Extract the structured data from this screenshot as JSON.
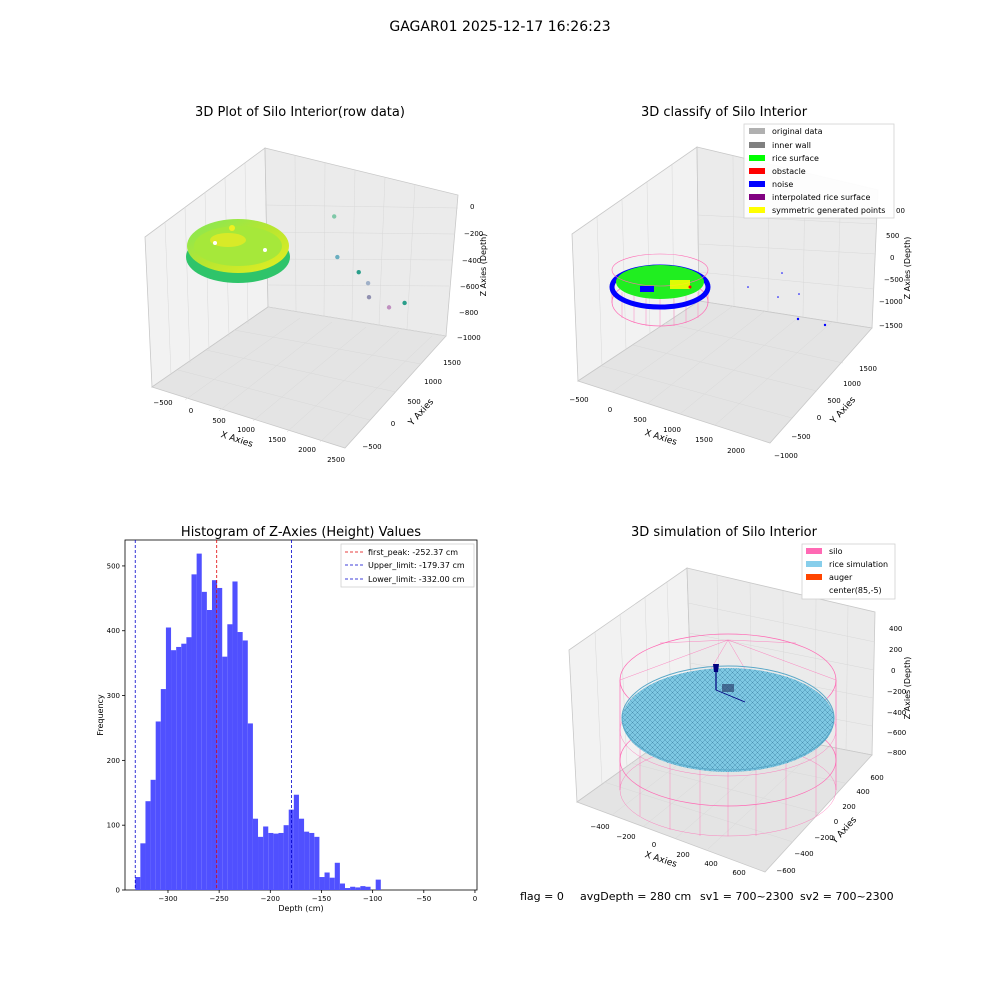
{
  "suptitle": "GAGAR01 2025-12-17 16:26:23",
  "footer": {
    "flag": "flag = 0",
    "avg_depth": "avgDepth = 280 cm",
    "sv1": "sv1 = 700~2300",
    "sv2": "sv2 = 700~2300"
  },
  "colors": {
    "hist_bar": "#5050ff",
    "peak_line": "#e00000",
    "limit_line": "#0000cc",
    "original": "#b0b0b0",
    "inner_wall": "#808080",
    "rice_surface": "#00ff00",
    "obstacle": "#ff0000",
    "noise": "#0000ff",
    "interpolated": "#800080",
    "symmetric": "#ffff00",
    "silo": "#ff69b4",
    "rice_sim": "#87ceeb",
    "auger": "#ff4500"
  },
  "chart_data": [
    {
      "type": "scatter",
      "title": "3D Plot of Silo Interior(row data)",
      "xlabel": "X Axies",
      "ylabel": "Y Axies",
      "zlabel": "Z Axies (Depth)",
      "x_ticks": [
        "−500",
        "0",
        "500",
        "1000",
        "1500",
        "2000",
        "2500"
      ],
      "y_ticks": [
        "−500",
        "0",
        "500",
        "1000",
        "1500"
      ],
      "z_ticks": [
        "0",
        "−200",
        "−400",
        "−600",
        "−800",
        "−1000"
      ],
      "outliers": [
        {
          "x": 1500,
          "y": 700,
          "z": -380
        },
        {
          "x": 1300,
          "y": 400,
          "z": -620
        },
        {
          "x": 1600,
          "y": 400,
          "z": -710
        },
        {
          "x": 1650,
          "y": 300,
          "z": -760
        },
        {
          "x": 1500,
          "y": 100,
          "z": -820
        },
        {
          "x": 1700,
          "y": 0,
          "z": -850
        },
        {
          "x": 2000,
          "y": 100,
          "z": -820
        }
      ]
    },
    {
      "type": "scatter",
      "title": "3D classify of Silo Interior",
      "xlabel": "X Axies",
      "ylabel": "Y Axies",
      "zlabel": "Z Axies (Depth)",
      "x_ticks": [
        "−500",
        "0",
        "500",
        "1000",
        "1500",
        "2000"
      ],
      "y_ticks": [
        "−1000",
        "−500",
        "0",
        "500",
        "1000",
        "1500"
      ],
      "z_ticks": [
        "500",
        "0",
        "−500",
        "−1000",
        "−1500"
      ],
      "z_partial_tick": "00",
      "legend": [
        "original data",
        "inner wall",
        "rice surface",
        "obstacle",
        "noise",
        "interpolated rice surface",
        "symmetric generated points"
      ],
      "legend_position": "upper right"
    },
    {
      "type": "bar",
      "title": "Histogram of Z-Axies (Height) Values",
      "xlabel": "Depth (cm)",
      "ylabel": "Frequency",
      "xlim": [
        -342,
        2
      ],
      "ylim": [
        0,
        540
      ],
      "x_ticks": [
        "−300",
        "−250",
        "−200",
        "−150",
        "−100",
        "−50",
        "0"
      ],
      "y_ticks": [
        "0",
        "100",
        "200",
        "300",
        "400",
        "500"
      ],
      "bin_start": -332,
      "bin_width": 5,
      "values": [
        20,
        72,
        137,
        170,
        260,
        310,
        405,
        370,
        375,
        380,
        390,
        487,
        519,
        460,
        432,
        478,
        466,
        360,
        410,
        476,
        398,
        385,
        257,
        110,
        82,
        98,
        88,
        87,
        88,
        100,
        124,
        147,
        110,
        90,
        88,
        82,
        20,
        27,
        19,
        42,
        10,
        3,
        5,
        4,
        6,
        5,
        0,
        16
      ],
      "vlines": [
        {
          "label": "first_peak: -252.37 cm",
          "x": -252.37,
          "color": "#e00000"
        },
        {
          "label": "Upper_limit: -179.37 cm",
          "x": -179.37,
          "color": "#0000cc"
        },
        {
          "label": "Lower_limit: -332.00 cm",
          "x": -332.0,
          "color": "#0000cc"
        }
      ],
      "legend_position": "upper right"
    },
    {
      "type": "scatter",
      "title": "3D simulation of Silo Interior",
      "xlabel": "X Axies",
      "ylabel": "Y Axies",
      "zlabel": "Z Axies (Depth)",
      "x_ticks": [
        "−400",
        "−200",
        "0",
        "200",
        "400",
        "600"
      ],
      "y_ticks": [
        "−600",
        "−400",
        "−200",
        "0",
        "200",
        "400",
        "600"
      ],
      "z_ticks": [
        "400",
        "200",
        "0",
        "−200",
        "−400",
        "−600",
        "−800"
      ],
      "legend": [
        "silo",
        "rice simulation",
        "auger",
        "center(85,-5)"
      ],
      "legend_position": "upper right"
    }
  ]
}
